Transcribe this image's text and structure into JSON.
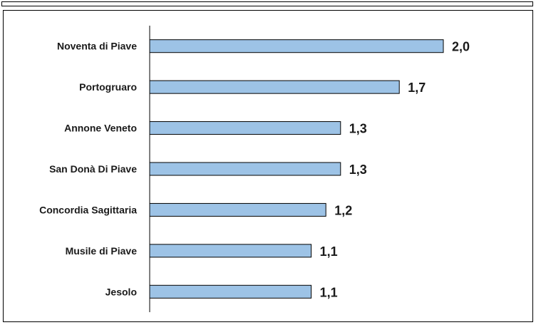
{
  "chart_data": {
    "type": "bar",
    "orientation": "horizontal",
    "categories": [
      "Noventa di Piave",
      "Portogruaro",
      "Annone Veneto",
      "San Donà Di Piave",
      "Concordia Sagittaria",
      "Musile di Piave",
      "Jesolo"
    ],
    "values": [
      2.0,
      1.7,
      1.3,
      1.3,
      1.2,
      1.1,
      1.1
    ],
    "value_labels": [
      "2,0",
      "1,7",
      "1,3",
      "1,3",
      "1,2",
      "1,1",
      "1,1"
    ],
    "xlim": [
      0,
      2.0
    ],
    "grid": false,
    "legend": "none",
    "colors": {
      "bar_fill": "#9dc3e6",
      "bar_stroke": "#000000",
      "axis": "#000000",
      "text": "#1a1a1a"
    }
  }
}
